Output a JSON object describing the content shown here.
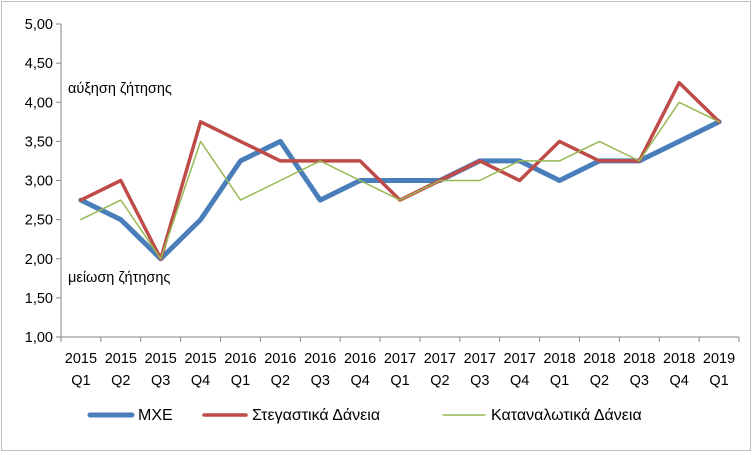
{
  "chart_data": {
    "type": "line",
    "title": "",
    "xlabel": "",
    "ylabel": "",
    "ylim": [
      1.0,
      5.0
    ],
    "yticks": [
      "1,00",
      "1,50",
      "2,00",
      "2,50",
      "3,00",
      "3,50",
      "4,00",
      "4,50",
      "5,00"
    ],
    "ytick_values": [
      1.0,
      1.5,
      2.0,
      2.5,
      3.0,
      3.5,
      4.0,
      4.5,
      5.0
    ],
    "grid": false,
    "legend_position": "bottom",
    "categories": [
      {
        "year": "2015",
        "quarter": "Q1"
      },
      {
        "year": "2015",
        "quarter": "Q2"
      },
      {
        "year": "2015",
        "quarter": "Q3"
      },
      {
        "year": "2015",
        "quarter": "Q4"
      },
      {
        "year": "2016",
        "quarter": "Q1"
      },
      {
        "year": "2016",
        "quarter": "Q2"
      },
      {
        "year": "2016",
        "quarter": "Q3"
      },
      {
        "year": "2016",
        "quarter": "Q4"
      },
      {
        "year": "2017",
        "quarter": "Q1"
      },
      {
        "year": "2017",
        "quarter": "Q2"
      },
      {
        "year": "2017",
        "quarter": "Q3"
      },
      {
        "year": "2017",
        "quarter": "Q4"
      },
      {
        "year": "2018",
        "quarter": "Q1"
      },
      {
        "year": "2018",
        "quarter": "Q2"
      },
      {
        "year": "2018",
        "quarter": "Q3"
      },
      {
        "year": "2018",
        "quarter": "Q4"
      },
      {
        "year": "2019",
        "quarter": "Q1"
      }
    ],
    "series": [
      {
        "name": "ΜΧΕ",
        "color": "#4a7ebb",
        "width": 5,
        "values": [
          2.75,
          2.5,
          2.0,
          2.5,
          3.25,
          3.5,
          2.75,
          3.0,
          3.0,
          3.0,
          3.25,
          3.25,
          3.0,
          3.25,
          3.25,
          3.5,
          3.75
        ]
      },
      {
        "name": "Στεγαστικά Δάνεια",
        "color": "#be4b48",
        "width": 3.5,
        "values": [
          2.75,
          3.0,
          2.0,
          3.75,
          3.5,
          3.25,
          3.25,
          3.25,
          2.75,
          3.0,
          3.25,
          3.0,
          3.5,
          3.25,
          3.25,
          4.25,
          3.75
        ]
      },
      {
        "name": "Καταναλωτικά Δάνεια",
        "color": "#98b954",
        "width": 1.5,
        "values": [
          2.5,
          2.75,
          2.0,
          3.5,
          2.75,
          3.0,
          3.25,
          3.0,
          2.75,
          3.0,
          3.0,
          3.25,
          3.25,
          3.5,
          3.25,
          4.0,
          3.75
        ]
      }
    ],
    "annotations": {
      "increase": "αύξηση ζήτησης",
      "decrease": "μείωση ζήτησης"
    }
  }
}
